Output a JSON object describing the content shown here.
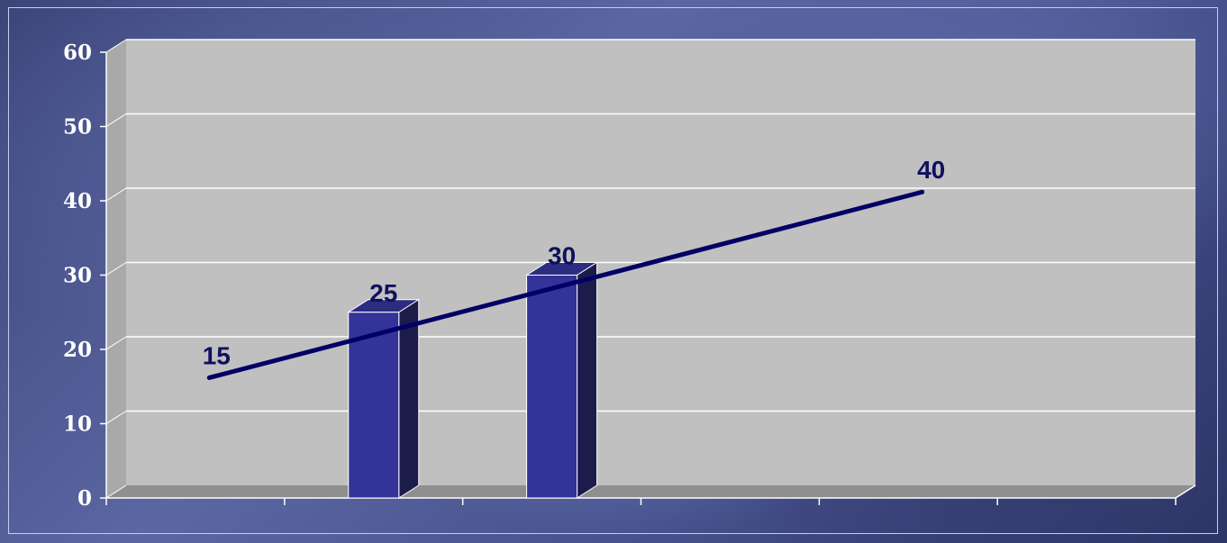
{
  "chart_data": {
    "type": "bar",
    "categories": [
      "",
      "",
      "",
      "",
      "",
      ""
    ],
    "series": [
      {
        "kind": "bar",
        "values": [
          null,
          25,
          30,
          null,
          null,
          null
        ]
      },
      {
        "kind": "line",
        "values": [
          15,
          null,
          null,
          null,
          40,
          null
        ],
        "labels_shown": [
          "15",
          "40"
        ]
      }
    ],
    "bar_labels": [
      "25",
      "30"
    ],
    "ylim": [
      0,
      60
    ],
    "yticks": [
      "0",
      "10",
      "20",
      "30",
      "40",
      "50",
      "60"
    ],
    "grid": true,
    "legend": "none",
    "colors": {
      "bar_front": "#333399",
      "bar_side": "#1c1c4a",
      "line": "#000066",
      "labels": "#101060",
      "plot_back": "#c0c0c0",
      "plot_floor": "#8f8f8f",
      "gridline": "#ffffff"
    }
  }
}
